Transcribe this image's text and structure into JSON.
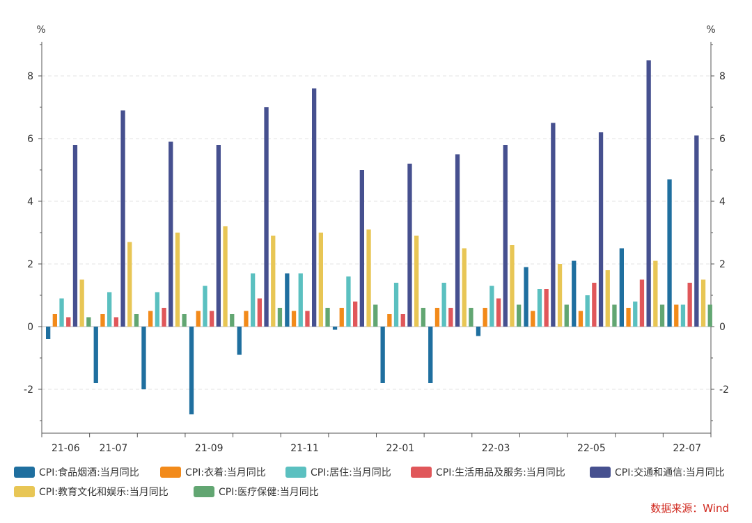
{
  "chart_data": {
    "type": "bar",
    "unit_left": "%",
    "unit_right": "%",
    "ylim": [
      -3.4,
      9
    ],
    "yticks": [
      -2,
      0,
      2,
      4,
      6,
      8
    ],
    "categories": [
      "21-06",
      "21-07",
      "21-08",
      "21-09",
      "21-10",
      "21-11",
      "21-12",
      "22-01",
      "22-02",
      "22-03",
      "22-04",
      "22-05",
      "22-06",
      "22-07"
    ],
    "xtick_labels": [
      "21-06",
      "21-07",
      "",
      "21-09",
      "",
      "21-11",
      "",
      "22-01",
      "",
      "22-03",
      "",
      "22-05",
      "",
      "22-07"
    ],
    "series": [
      {
        "name": "CPI:食品烟酒:当月同比",
        "color": "#1f6f9f",
        "values": [
          -0.4,
          -1.8,
          -2.0,
          -2.8,
          -0.9,
          1.7,
          -0.1,
          -1.8,
          -1.8,
          -0.3,
          1.9,
          2.1,
          2.5,
          4.7
        ]
      },
      {
        "name": "CPI:衣着:当月同比",
        "color": "#f28a1a",
        "values": [
          0.4,
          0.4,
          0.5,
          0.5,
          0.5,
          0.5,
          0.6,
          0.4,
          0.6,
          0.6,
          0.5,
          0.5,
          0.6,
          0.7
        ]
      },
      {
        "name": "CPI:居住:当月同比",
        "color": "#5bc0c0",
        "values": [
          0.9,
          1.1,
          1.1,
          1.3,
          1.7,
          1.7,
          1.6,
          1.4,
          1.4,
          1.3,
          1.2,
          1.0,
          0.8,
          0.7
        ]
      },
      {
        "name": "CPI:生活用品及服务:当月同比",
        "color": "#e0575a",
        "values": [
          0.3,
          0.3,
          0.6,
          0.5,
          0.9,
          0.5,
          0.8,
          0.4,
          0.6,
          0.9,
          1.2,
          1.4,
          1.5,
          1.4
        ]
      },
      {
        "name": "CPI:交通和通信:当月同比",
        "color": "#46508f",
        "values": [
          5.8,
          6.9,
          5.9,
          5.8,
          7.0,
          7.6,
          5.0,
          5.2,
          5.5,
          5.8,
          6.5,
          6.2,
          8.5,
          6.1
        ]
      },
      {
        "name": "CPI:教育文化和娱乐:当月同比",
        "color": "#e8c655",
        "values": [
          1.5,
          2.7,
          3.0,
          3.2,
          2.9,
          3.0,
          3.1,
          2.9,
          2.5,
          2.6,
          2.0,
          1.8,
          2.1,
          1.5
        ]
      },
      {
        "name": "CPI:医疗保健:当月同比",
        "color": "#62a672",
        "values": [
          0.3,
          0.4,
          0.4,
          0.4,
          0.6,
          0.6,
          0.7,
          0.6,
          0.6,
          0.7,
          0.7,
          0.7,
          0.7,
          0.7
        ]
      }
    ]
  },
  "source": "数据来源：Wind"
}
